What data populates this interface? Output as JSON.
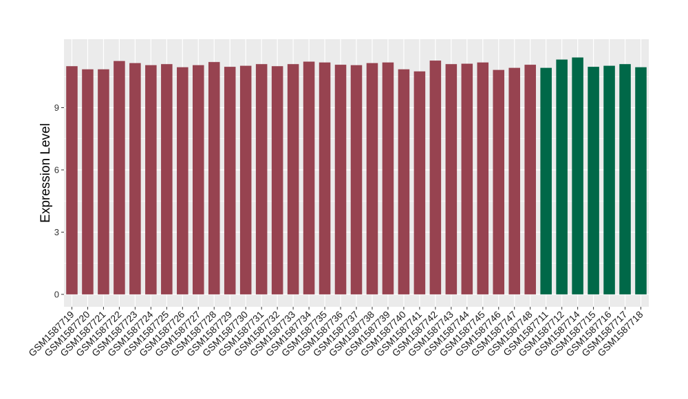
{
  "chart_data": {
    "type": "bar",
    "title": "",
    "xlabel": "",
    "ylabel": "Expression Level",
    "ylim": [
      -0.6,
      12.3
    ],
    "yticks": [
      0,
      3,
      6,
      9
    ],
    "grid": true,
    "legend": "none",
    "categories": [
      "GSM1587719",
      "GSM1587720",
      "GSM1587721",
      "GSM1587722",
      "GSM1587723",
      "GSM1587724",
      "GSM1587725",
      "GSM1587726",
      "GSM1587727",
      "GSM1587728",
      "GSM1587729",
      "GSM1587730",
      "GSM1587731",
      "GSM1587732",
      "GSM1587733",
      "GSM1587734",
      "GSM1587735",
      "GSM1587736",
      "GSM1587737",
      "GSM1587738",
      "GSM1587739",
      "GSM1587740",
      "GSM1587741",
      "GSM1587742",
      "GSM1587743",
      "GSM1587744",
      "GSM1587745",
      "GSM1587746",
      "GSM1587747",
      "GSM1587748",
      "GSM1587711",
      "GSM1587712",
      "GSM1587714",
      "GSM1587715",
      "GSM1587716",
      "GSM1587717",
      "GSM1587718"
    ],
    "values": [
      11.0,
      10.85,
      10.85,
      11.25,
      11.15,
      11.05,
      11.1,
      10.95,
      11.05,
      11.2,
      10.97,
      11.02,
      11.1,
      11.0,
      11.1,
      11.22,
      11.18,
      11.07,
      11.05,
      11.15,
      11.18,
      10.85,
      10.75,
      11.27,
      11.1,
      11.12,
      11.18,
      10.82,
      10.92,
      11.07,
      10.92,
      11.32,
      11.42,
      10.97,
      11.02,
      11.1,
      10.95
    ],
    "groups": [
      0,
      0,
      0,
      0,
      0,
      0,
      0,
      0,
      0,
      0,
      0,
      0,
      0,
      0,
      0,
      0,
      0,
      0,
      0,
      0,
      0,
      0,
      0,
      0,
      0,
      0,
      0,
      0,
      0,
      0,
      1,
      1,
      1,
      1,
      1,
      1,
      1
    ],
    "colors": [
      "#974350",
      "#006848"
    ],
    "panel_background": "#EBEBEB",
    "grid_color": "#FFFFFF"
  }
}
